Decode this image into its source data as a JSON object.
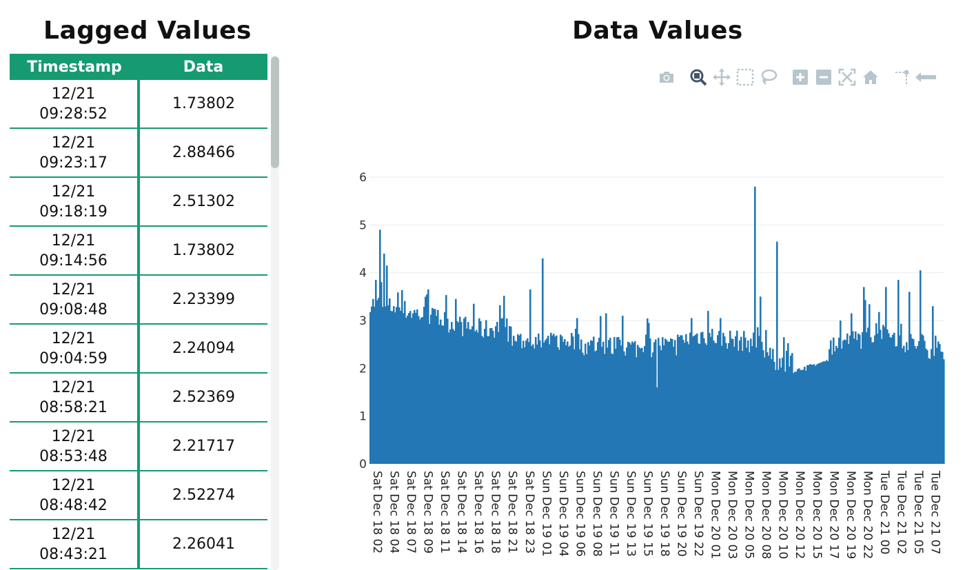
{
  "left_title": "Lagged Values",
  "right_title": "Data Values",
  "table": {
    "headers": [
      "Timestamp",
      "Data"
    ],
    "rows": [
      {
        "date": "12/21",
        "time": "09:28:52",
        "value": "1.73802"
      },
      {
        "date": "12/21",
        "time": "09:23:17",
        "value": "2.88466"
      },
      {
        "date": "12/21",
        "time": "09:18:19",
        "value": "2.51302"
      },
      {
        "date": "12/21",
        "time": "09:14:56",
        "value": "1.73802"
      },
      {
        "date": "12/21",
        "time": "09:08:48",
        "value": "2.23399"
      },
      {
        "date": "12/21",
        "time": "09:04:59",
        "value": "2.24094"
      },
      {
        "date": "12/21",
        "time": "08:58:21",
        "value": "2.52369"
      },
      {
        "date": "12/21",
        "time": "08:53:48",
        "value": "2.21717"
      },
      {
        "date": "12/21",
        "time": "08:48:42",
        "value": "2.52274"
      },
      {
        "date": "12/21",
        "time": "08:43:21",
        "value": "2.26041"
      }
    ]
  },
  "modebar": {
    "icons": [
      "camera-icon",
      "zoom-icon",
      "pan-icon",
      "box-select-icon",
      "lasso-select-icon",
      "zoom-in-icon",
      "zoom-out-icon",
      "autoscale-icon",
      "reset-axes-icon",
      "spike-lines-icon",
      "hover-closest-icon"
    ],
    "active": "zoom-icon",
    "icon_color": "#b7c5cc",
    "active_color": "#44546a"
  },
  "chart_data": {
    "type": "bar",
    "title": "",
    "xlabel": "",
    "ylabel": "",
    "ylim": [
      0,
      6
    ],
    "yticks": [
      0,
      1,
      2,
      3,
      4,
      5,
      6
    ],
    "grid": true,
    "bar_color": "#2277b4",
    "x_start": "Sat Dec 18 02:00",
    "x_end": "Tue Dec 21 09:30",
    "xtick_labels": [
      "Sat Dec 18 02",
      "Sat Dec 18 04",
      "Sat Dec 18 07",
      "Sat Dec 18 09",
      "Sat Dec 18 11",
      "Sat Dec 18 14",
      "Sat Dec 18 16",
      "Sat Dec 18 18",
      "Sat Dec 18 21",
      "Sat Dec 18 23",
      "Sun Dec 19 01",
      "Sun Dec 19 04",
      "Sun Dec 19 06",
      "Sun Dec 19 08",
      "Sun Dec 19 11",
      "Sun Dec 19 13",
      "Sun Dec 19 15",
      "Sun Dec 19 18",
      "Sun Dec 19 20",
      "Sun Dec 19 22",
      "Mon Dec 20 01",
      "Mon Dec 20 03",
      "Mon Dec 20 05",
      "Mon Dec 20 08",
      "Mon Dec 20 10",
      "Mon Dec 20 12",
      "Mon Dec 20 15",
      "Mon Dec 20 17",
      "Mon Dec 20 19",
      "Mon Dec 20 22",
      "Tue Dec 21 00",
      "Tue Dec 21 02",
      "Tue Dec 21 05",
      "Tue Dec 21 07"
    ],
    "base_levels": [
      [
        0.0,
        3.4
      ],
      [
        0.02,
        3.3
      ],
      [
        0.05,
        3.25
      ],
      [
        0.08,
        3.15
      ],
      [
        0.1,
        3.1
      ],
      [
        0.13,
        3.0
      ],
      [
        0.15,
        2.9
      ],
      [
        0.18,
        2.85
      ],
      [
        0.2,
        2.8
      ],
      [
        0.23,
        2.9
      ],
      [
        0.25,
        2.6
      ],
      [
        0.28,
        2.55
      ],
      [
        0.3,
        2.5
      ],
      [
        0.32,
        2.55
      ],
      [
        0.35,
        2.6
      ],
      [
        0.38,
        2.45
      ],
      [
        0.4,
        2.5
      ],
      [
        0.42,
        2.45
      ],
      [
        0.45,
        2.45
      ],
      [
        0.48,
        2.4
      ],
      [
        0.5,
        2.5
      ],
      [
        0.53,
        2.45
      ],
      [
        0.55,
        2.6
      ],
      [
        0.58,
        2.7
      ],
      [
        0.61,
        2.65
      ],
      [
        0.63,
        2.6
      ],
      [
        0.66,
        2.55
      ],
      [
        0.68,
        2.55
      ],
      [
        0.7,
        2.2
      ],
      [
        0.72,
        2.1
      ],
      [
        0.75,
        2.5
      ],
      [
        0.78,
        2.55
      ],
      [
        0.8,
        2.5
      ],
      [
        0.82,
        2.55
      ],
      [
        0.85,
        2.6
      ],
      [
        0.88,
        2.75
      ],
      [
        0.9,
        2.8
      ],
      [
        0.93,
        2.55
      ],
      [
        0.96,
        2.5
      ],
      [
        0.98,
        2.4
      ],
      [
        1.0,
        2.4
      ]
    ],
    "spikes": [
      [
        0.005,
        3.45
      ],
      [
        0.01,
        3.85
      ],
      [
        0.017,
        4.9
      ],
      [
        0.025,
        4.4
      ],
      [
        0.03,
        4.15
      ],
      [
        0.04,
        3.3
      ],
      [
        0.07,
        3.2
      ],
      [
        0.1,
        3.65
      ],
      [
        0.15,
        3.45
      ],
      [
        0.18,
        3.35
      ],
      [
        0.23,
        3.05
      ],
      [
        0.28,
        3.65
      ],
      [
        0.3,
        4.3
      ],
      [
        0.36,
        3.05
      ],
      [
        0.41,
        3.15
      ],
      [
        0.44,
        3.0
      ],
      [
        0.44,
        3.5
      ],
      [
        0.44,
        3.1
      ],
      [
        0.485,
        2.95
      ],
      [
        0.5,
        1.6
      ],
      [
        0.53,
        2.45
      ],
      [
        0.56,
        3.05
      ],
      [
        0.59,
        3.2
      ],
      [
        0.61,
        3.05
      ],
      [
        0.67,
        5.8
      ],
      [
        0.68,
        3.5
      ],
      [
        0.69,
        2.8
      ],
      [
        0.71,
        4.65
      ],
      [
        0.72,
        2.65
      ],
      [
        0.74,
        1.95
      ],
      [
        0.78,
        2.2
      ],
      [
        0.8,
        2.4
      ],
      [
        0.82,
        3.0
      ],
      [
        0.84,
        3.15
      ],
      [
        0.86,
        3.7
      ],
      [
        0.9,
        3.7
      ],
      [
        0.92,
        3.85
      ],
      [
        0.94,
        3.6
      ],
      [
        0.96,
        4.05
      ],
      [
        0.98,
        3.3
      ],
      [
        1.03,
        3.85
      ],
      [
        1.04,
        3.7
      ],
      [
        1.06,
        3.4
      ],
      [
        1.075,
        4.05
      ],
      [
        1.09,
        3.2
      ],
      [
        1.1,
        3.65
      ],
      [
        1.12,
        3.45
      ],
      [
        1.13,
        4.55
      ],
      [
        1.14,
        4.0
      ],
      [
        1.16,
        2.95
      ],
      [
        1.175,
        3.55
      ],
      [
        1.19,
        3.2
      ],
      [
        1.21,
        3.0
      ],
      [
        1.22,
        3.1
      ],
      [
        1.24,
        3.35
      ],
      [
        1.25,
        2.85
      ],
      [
        1.27,
        2.8
      ],
      [
        1.28,
        1.75
      ],
      [
        1.29,
        3.0
      ]
    ],
    "dips": [
      [
        0.5,
        1.6
      ],
      [
        1.28,
        1.75
      ],
      [
        0.738,
        1.9
      ],
      [
        0.76,
        1.95
      ]
    ]
  }
}
